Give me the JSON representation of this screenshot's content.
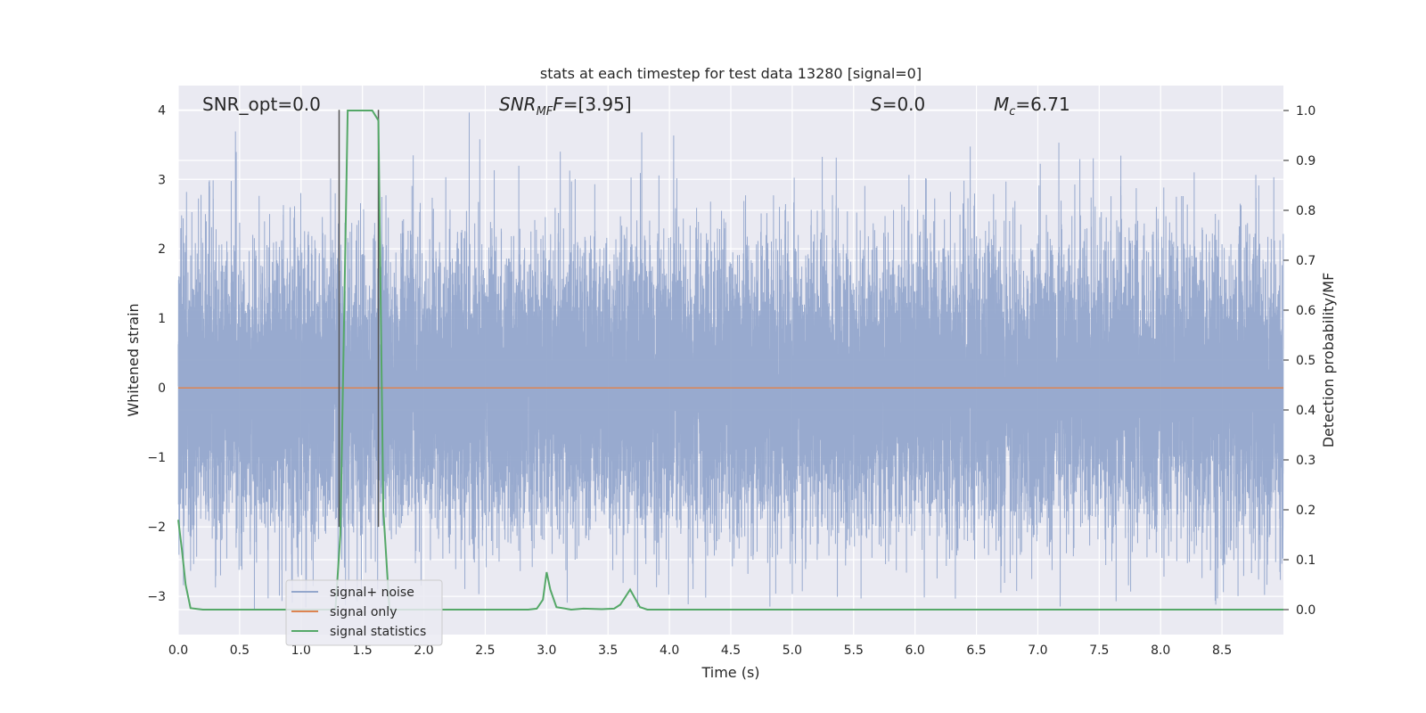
{
  "chart_data": {
    "type": "line",
    "title": "stats at each timestep for test data 13280 [signal=0]",
    "xlabel": "Time (s)",
    "ylabel": "Whitened strain",
    "ylabel_right": "Detection probability/MF",
    "xlim": [
      0,
      9
    ],
    "ylim": [
      -3.55,
      4.35
    ],
    "ylim_right": [
      -0.05,
      1.05
    ],
    "x_ticks": [
      "0.0",
      "0.5",
      "1.0",
      "1.5",
      "2.0",
      "2.5",
      "3.0",
      "3.5",
      "4.0",
      "4.5",
      "5.0",
      "5.5",
      "6.0",
      "6.5",
      "7.0",
      "7.5",
      "8.0",
      "8.5"
    ],
    "y_ticks": [
      "−3",
      "−2",
      "−1",
      "0",
      "1",
      "2",
      "3",
      "4"
    ],
    "y_ticks_right": [
      "0.0",
      "0.1",
      "0.2",
      "0.3",
      "0.4",
      "0.5",
      "0.6",
      "0.7",
      "0.8",
      "0.9",
      "1.0"
    ],
    "grid": true,
    "background": "#EAEAF2",
    "annotations": {
      "snr_opt": "SNR_opt=0.0",
      "snr_mf_main": "SNR",
      "snr_mf_sub": "MF",
      "snr_mf_value": "=[3.95]",
      "s_main": "S",
      "s_value": "=0.0",
      "mc_main": "M",
      "mc_sub": "c",
      "mc_value": "=6.71"
    },
    "legend": {
      "placement": "lower-left",
      "entries": [
        "signal+ noise",
        "signal only",
        "signal statistics"
      ]
    },
    "vlines": [
      1.31,
      1.63
    ],
    "series": [
      {
        "name": "signal+ noise",
        "color": "#94A7CC",
        "kind": "noise",
        "sample_rate": 2048,
        "amplitude_sigma": 1.0,
        "min": -3.2,
        "max": 4.0
      },
      {
        "name": "signal only",
        "color": "#DD8452",
        "x": [
          0,
          9
        ],
        "y": [
          0,
          0
        ]
      },
      {
        "name": "signal statistics",
        "color": "#55A868",
        "axis": "right",
        "x": [
          0.0,
          0.03,
          0.06,
          0.1,
          0.2,
          0.3,
          1.2,
          1.28,
          1.32,
          1.38,
          1.5,
          1.58,
          1.63,
          1.67,
          1.72,
          2.0,
          2.85,
          2.92,
          2.97,
          3.0,
          3.03,
          3.08,
          3.2,
          3.3,
          3.45,
          3.55,
          3.6,
          3.68,
          3.76,
          3.82,
          4.0,
          9.0
        ],
        "y": [
          0.18,
          0.12,
          0.05,
          0.003,
          0.0,
          0.0,
          0.0,
          0.0,
          0.15,
          1.0,
          1.0,
          1.0,
          0.98,
          0.2,
          0.0,
          0.0,
          0.0,
          0.002,
          0.02,
          0.075,
          0.04,
          0.005,
          0.0,
          0.002,
          0.001,
          0.002,
          0.01,
          0.04,
          0.005,
          0.0,
          0.0,
          0.0
        ]
      }
    ]
  }
}
